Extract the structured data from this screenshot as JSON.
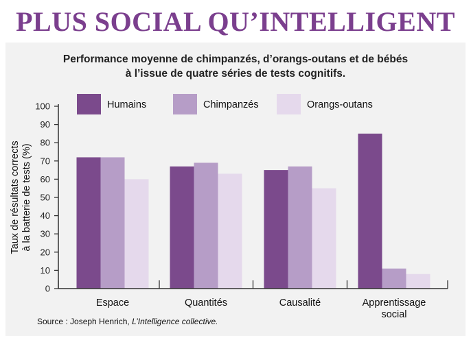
{
  "header": {
    "title": "PLUS SOCIAL QU’INTELLIGENT",
    "subtitle_line1": "Performance moyenne de chimpanzés, d’orangs-outans et de bébés",
    "subtitle_line2": "à l’issue de quatre séries de tests cognitifs."
  },
  "footer": {
    "source_prefix": "Source : Joseph Henrich, ",
    "source_book": "L’Intelligence collective."
  },
  "colors": {
    "title": "#7b3f8e",
    "humains": "#7b4a8c",
    "chimpanzes": "#b69dc7",
    "orangs_outans": "#e5d9ec",
    "axis": "#333333"
  },
  "chart_data": {
    "type": "bar",
    "categories": [
      "Espace",
      "Quantités",
      "Causalité",
      "Apprentissage social"
    ],
    "series": [
      {
        "name": "Humains",
        "values": [
          72,
          67,
          65,
          85
        ]
      },
      {
        "name": "Chimpanzés",
        "values": [
          72,
          69,
          67,
          11
        ]
      },
      {
        "name": "Orangs-outans",
        "values": [
          60,
          63,
          55,
          8
        ]
      }
    ],
    "title": "Performance moyenne de chimpanzés, d’orangs-outans et de bébés à l’issue de quatre séries de tests cognitifs.",
    "xlabel": "",
    "ylabel": "Taux de résultats corrects à la batterie de tests (%)",
    "ylabel_lines": [
      "Taux de résultats corrects",
      "à la batterie de tests (%)"
    ],
    "ylim": [
      0,
      100
    ],
    "yticks": [
      0,
      10,
      20,
      30,
      40,
      50,
      60,
      70,
      80,
      90,
      100
    ],
    "grid": false,
    "legend": "top"
  }
}
